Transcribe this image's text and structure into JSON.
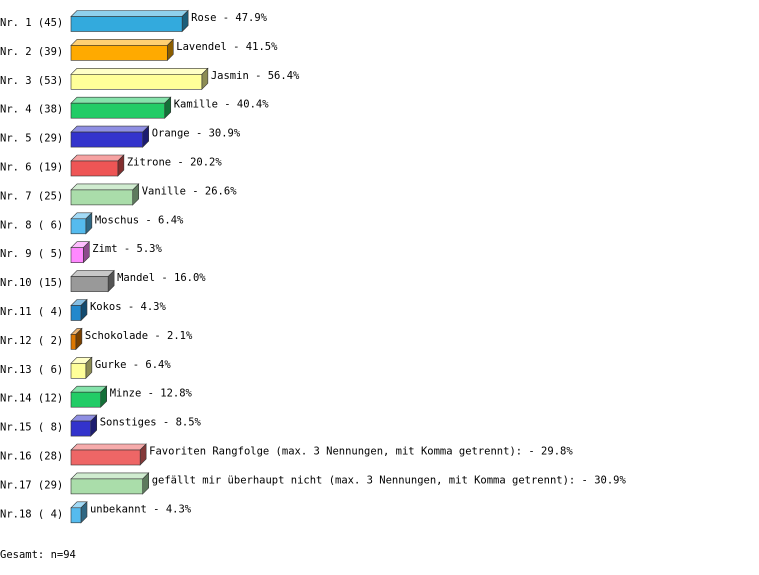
{
  "chart_data": {
    "type": "bar",
    "categories": [
      "Nr. 1 (45)",
      "Nr. 2 (39)",
      "Nr. 3 (53)",
      "Nr. 4 (38)",
      "Nr. 5 (29)",
      "Nr. 6 (19)",
      "Nr. 7 (25)",
      "Nr. 8 ( 6)",
      "Nr. 9 ( 5)",
      "Nr.10 (15)",
      "Nr.11 ( 4)",
      "Nr.12 ( 2)",
      "Nr.13 ( 6)",
      "Nr.14 (12)",
      "Nr.15 ( 8)",
      "Nr.16 (28)",
      "Nr.17 (29)",
      "Nr.18 ( 4)"
    ],
    "values": [
      47.9,
      41.5,
      56.4,
      40.4,
      30.9,
      20.2,
      26.6,
      6.4,
      5.3,
      16.0,
      4.3,
      2.1,
      6.4,
      12.8,
      8.5,
      29.8,
      30.9,
      4.3
    ],
    "value_labels": [
      "Rose -  47.9%",
      "Lavendel -  41.5%",
      "Jasmin -  56.4%",
      "Kamille -  40.4%",
      "Orange -  30.9%",
      "Zitrone -  20.2%",
      "Vanille -  26.6%",
      "Moschus -   6.4%",
      "Zimt -   5.3%",
      "Mandel -  16.0%",
      "Kokos -   4.3%",
      "Schokolade -   2.1%",
      "Gurke -   6.4%",
      "Minze -  12.8%",
      "Sonstiges -   8.5%",
      "Favoriten Rangfolge (max. 3 Nennungen, mit Komma getrennt): -  29.8%",
      "gefällt mir überhaupt nicht (max. 3 Nennungen, mit Komma getrennt): -  30.9%",
      "unbekannt -   4.3%"
    ],
    "colors": [
      "#33aadd",
      "#ffaa00",
      "#ffff99",
      "#22cc66",
      "#3333cc",
      "#ee5555",
      "#aaddaa",
      "#55bbee",
      "#ff88ff",
      "#999999",
      "#2288cc",
      "#dd7700",
      "#ffff99",
      "#22cc66",
      "#3333cc",
      "#ee6666",
      "#aaddaa",
      "#55bbee"
    ],
    "xlim": [
      0,
      100
    ],
    "footer": "Gesamt: n=94"
  }
}
